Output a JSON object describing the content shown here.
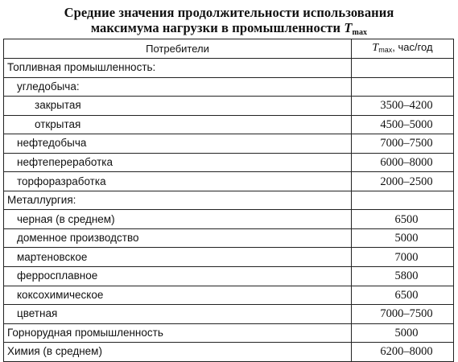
{
  "title": {
    "line1": "Средние значения продолжительности использования",
    "line2_text": "максимума нагрузки в промышленности ",
    "line2_symbol": "T",
    "line2_subscript": "max"
  },
  "table": {
    "header": {
      "consumer": "Потребители",
      "value_symbol": "T",
      "value_subscript": "max",
      "value_unit": ", час/год"
    },
    "rows": [
      {
        "label": "Топливная промышленность:",
        "value": ""
      },
      {
        "label": "угледобыча:",
        "value": ""
      },
      {
        "label": "закрытая",
        "value": "3500–4200"
      },
      {
        "label": "открытая",
        "value": "4500–5000"
      },
      {
        "label": "нефтедобыча",
        "value": "7000–7500"
      },
      {
        "label": "нефтепереработка",
        "value": "6000–8000"
      },
      {
        "label": "торфоразработка",
        "value": "2000–2500"
      },
      {
        "label": "Металлургия:",
        "value": ""
      },
      {
        "label": "черная (в среднем)",
        "value": "6500"
      },
      {
        "label": "доменное производство",
        "value": "5000"
      },
      {
        "label": "мартеновское",
        "value": "7000"
      },
      {
        "label": "ферросплавное",
        "value": "5800"
      },
      {
        "label": "коксохимическое",
        "value": "6500"
      },
      {
        "label": "цветная",
        "value": "7000–7500"
      },
      {
        "label": "Горнорудная промышленность",
        "value": "5000"
      },
      {
        "label": "Химия (в среднем)",
        "value": "6200–8000"
      }
    ]
  }
}
